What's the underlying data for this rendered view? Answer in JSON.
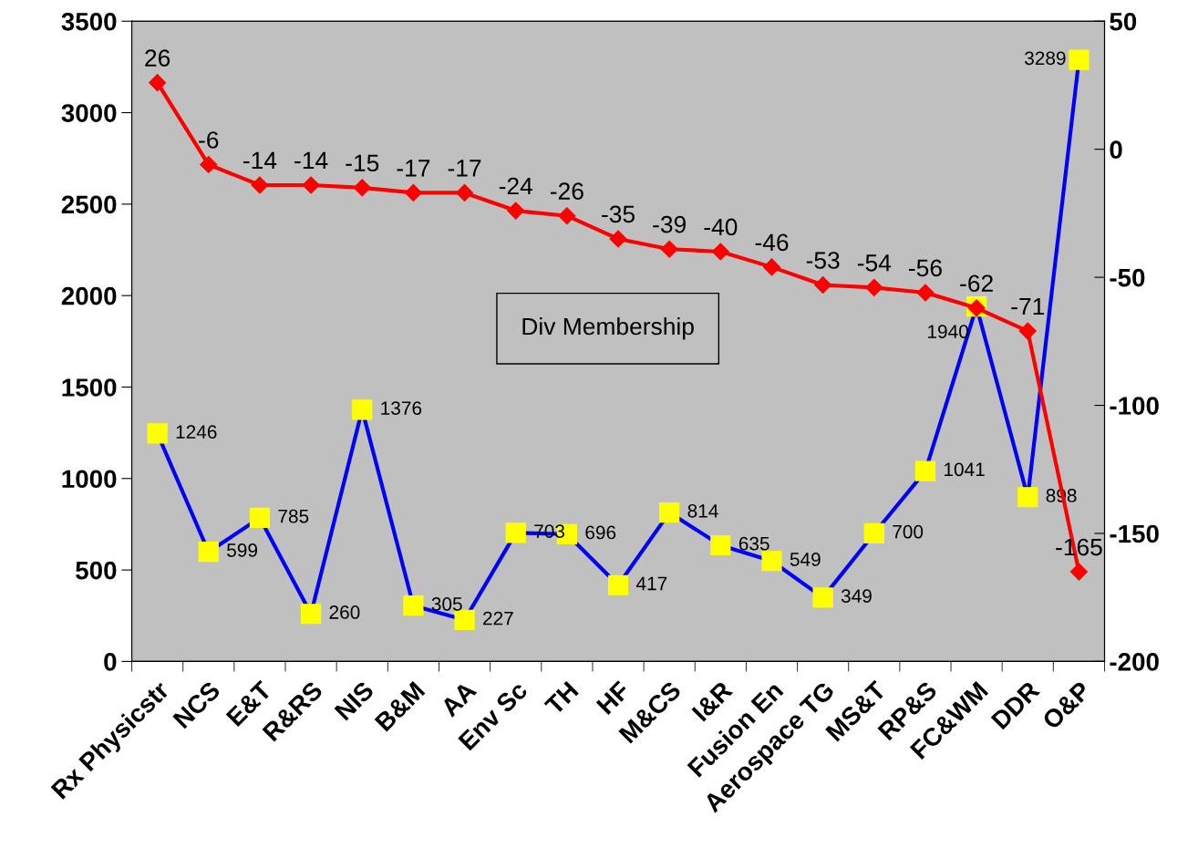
{
  "chart_data": {
    "type": "line",
    "categories": [
      "Rx Physicstr",
      "NCS",
      "E&T",
      "R&RS",
      "NIS",
      "B&M",
      "AA",
      "Env Sc",
      "TH",
      "HF",
      "M&CS",
      "I&R",
      "Fusion En",
      "Aerospace TG",
      "MS&T",
      "RP&S",
      "FC&WM",
      "DDR",
      "O&P"
    ],
    "series": [
      {
        "color": "#0000ff",
        "marker": "square",
        "values": [
          1246,
          599,
          785,
          260,
          1376,
          305,
          227,
          703,
          696,
          417,
          814,
          635,
          549,
          349,
          700,
          1041,
          1940,
          898,
          3289
        ]
      },
      {
        "color": "#ff0000",
        "marker": "diamond",
        "axis": "y2",
        "values": [
          26,
          -6,
          -14,
          -14,
          -15,
          -17,
          -17,
          -24,
          -26,
          -35,
          -39,
          -40,
          -46,
          -53,
          -54,
          -56,
          -62,
          -71,
          -165
        ]
      }
    ],
    "ylim": [
      0,
      3500
    ],
    "yticks": [
      0,
      500,
      1000,
      1500,
      2000,
      2500,
      3000,
      3500
    ],
    "y2lim": [
      -200,
      50
    ],
    "y2ticks": [
      -200,
      -150,
      -100,
      -50,
      0,
      50
    ],
    "data_labels": true,
    "grid": false,
    "legend": false,
    "line_style": "solid",
    "annotations": [
      "Div Membership"
    ]
  }
}
